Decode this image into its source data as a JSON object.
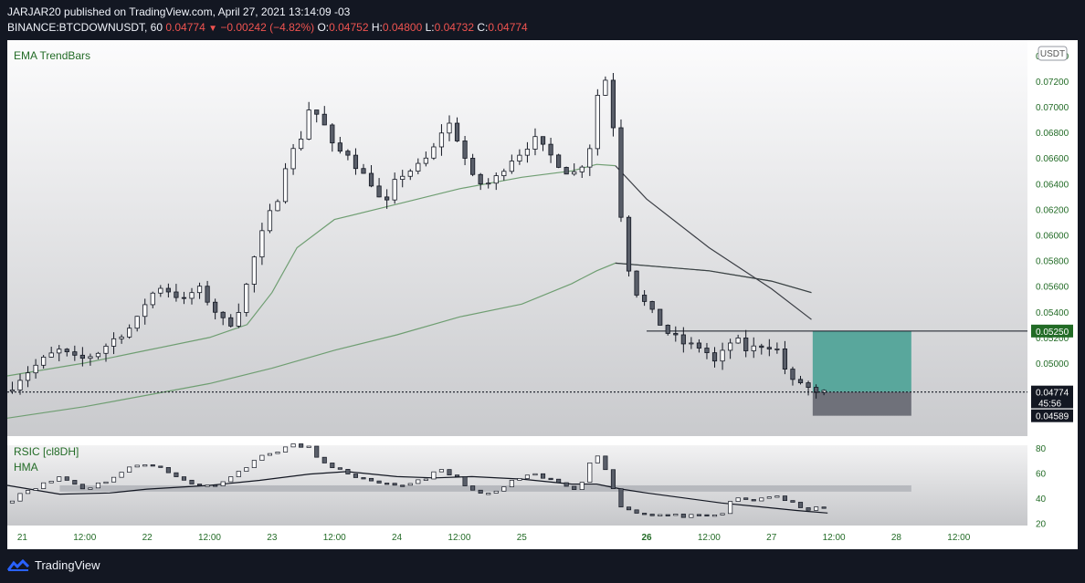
{
  "header": {
    "publisher_line": "JARJAR20 published on TradingView.com, April 27, 2021 13:14:09 -03",
    "symbol": "BINANCE:BTCDOWNUSDT, 60",
    "last": "0.04774",
    "change_arrow": "▼",
    "change": "−0.00242 (−4.82%)",
    "o_label": "O:",
    "o_value": "0.04752",
    "h_label": "H:",
    "h_value": "0.04800",
    "l_label": "L:",
    "l_value": "0.04732",
    "c_label": "C:",
    "c_value": "0.04774"
  },
  "footer": {
    "brand": "TradingView",
    "logo_icon": "tradingview-logo-icon"
  },
  "colors": {
    "background": "#131722",
    "bull": "#ffffff",
    "bear": "#595e69",
    "ema_green": "#6f9e72",
    "ema_dark": "#3b3e45",
    "position_fill": "#59a79c",
    "stop_fill": "#6f717a",
    "label_green": "#226b26"
  },
  "chart_data": [
    {
      "type": "candlestick",
      "indicator_label": "EMA TrendBars",
      "currency_badge": "USDT",
      "y_ticks": [
        "0.05000",
        "0.05200",
        "0.05400",
        "0.05600",
        "0.05800",
        "0.06000",
        "0.06200",
        "0.06400",
        "0.06600",
        "0.06800",
        "0.07000",
        "0.07200",
        "0.07400"
      ],
      "ylim": [
        0.0443,
        0.0752
      ],
      "x_ticks": [
        {
          "label": "21",
          "x": 21.0
        },
        {
          "label": "12:00",
          "x": 21.5
        },
        {
          "label": "22",
          "x": 22.0
        },
        {
          "label": "12:00",
          "x": 22.5
        },
        {
          "label": "23",
          "x": 23.0
        },
        {
          "label": "12:00",
          "x": 23.5
        },
        {
          "label": "24",
          "x": 24.0
        },
        {
          "label": "12:00",
          "x": 24.5
        },
        {
          "label": "25",
          "x": 25.0
        },
        {
          "label": "26",
          "x": 26.0
        },
        {
          "label": "12:00",
          "x": 26.5
        },
        {
          "label": "27",
          "x": 27.0
        },
        {
          "label": "12:00",
          "x": 27.5
        },
        {
          "label": "28",
          "x": 28.0
        },
        {
          "label": "12:00",
          "x": 28.5
        }
      ],
      "xlim": [
        20.88,
        29.05
      ],
      "price_path": [
        [
          20.88,
          0.0478
        ],
        [
          21.0,
          0.049
        ],
        [
          21.2,
          0.0505
        ],
        [
          21.3,
          0.051
        ],
        [
          21.45,
          0.0502
        ],
        [
          21.6,
          0.0508
        ],
        [
          21.75,
          0.052
        ],
        [
          21.9,
          0.053
        ],
        [
          22.0,
          0.055
        ],
        [
          22.1,
          0.056
        ],
        [
          22.2,
          0.0555
        ],
        [
          22.3,
          0.0548
        ],
        [
          22.4,
          0.056
        ],
        [
          22.55,
          0.054
        ],
        [
          22.65,
          0.0528
        ],
        [
          22.75,
          0.0545
        ],
        [
          22.85,
          0.058
        ],
        [
          22.95,
          0.061
        ],
        [
          23.05,
          0.063
        ],
        [
          23.12,
          0.066
        ],
        [
          23.22,
          0.0672
        ],
        [
          23.3,
          0.07
        ],
        [
          23.4,
          0.069
        ],
        [
          23.5,
          0.0665
        ],
        [
          23.6,
          0.0665
        ],
        [
          23.7,
          0.065
        ],
        [
          23.8,
          0.064
        ],
        [
          23.9,
          0.062
        ],
        [
          24.0,
          0.0645
        ],
        [
          24.1,
          0.065
        ],
        [
          24.2,
          0.0655
        ],
        [
          24.3,
          0.0668
        ],
        [
          24.4,
          0.069
        ],
        [
          24.5,
          0.0672
        ],
        [
          24.6,
          0.0645
        ],
        [
          24.7,
          0.0638
        ],
        [
          24.8,
          0.0645
        ],
        [
          24.9,
          0.0658
        ],
        [
          25.0,
          0.0665
        ],
        [
          25.1,
          0.0675
        ],
        [
          25.2,
          0.0665
        ],
        [
          25.35,
          0.065
        ],
        [
          25.45,
          0.0648
        ],
        [
          25.55,
          0.067
        ],
        [
          25.62,
          0.0718
        ],
        [
          25.68,
          0.0722
        ],
        [
          25.74,
          0.068
        ],
        [
          25.8,
          0.061
        ],
        [
          25.88,
          0.056
        ],
        [
          26.0,
          0.0545
        ],
        [
          26.15,
          0.0525
        ],
        [
          26.3,
          0.0515
        ],
        [
          26.45,
          0.0512
        ],
        [
          26.55,
          0.05
        ],
        [
          26.7,
          0.052
        ],
        [
          26.8,
          0.051
        ],
        [
          26.95,
          0.0515
        ],
        [
          27.05,
          0.051
        ],
        [
          27.15,
          0.0485
        ],
        [
          27.25,
          0.0485
        ],
        [
          27.35,
          0.0475
        ],
        [
          27.45,
          0.0477
        ]
      ],
      "ema_fast": [
        [
          20.88,
          0.049
        ],
        [
          21.5,
          0.05
        ],
        [
          22.0,
          0.051
        ],
        [
          22.5,
          0.052
        ],
        [
          22.8,
          0.053
        ],
        [
          23.0,
          0.0555
        ],
        [
          23.2,
          0.059
        ],
        [
          23.5,
          0.0612
        ],
        [
          24.0,
          0.0624
        ],
        [
          24.5,
          0.0636
        ],
        [
          25.0,
          0.0645
        ],
        [
          25.4,
          0.065
        ],
        [
          25.6,
          0.0655
        ],
        [
          25.75,
          0.0654
        ],
        [
          26.0,
          0.0628
        ],
        [
          26.5,
          0.059
        ],
        [
          27.0,
          0.0558
        ],
        [
          27.32,
          0.0534
        ]
      ],
      "ema_slow": [
        [
          20.88,
          0.0457
        ],
        [
          21.5,
          0.0466
        ],
        [
          22.0,
          0.0475
        ],
        [
          22.5,
          0.0484
        ],
        [
          23.0,
          0.0496
        ],
        [
          23.5,
          0.051
        ],
        [
          24.0,
          0.0522
        ],
        [
          24.5,
          0.0536
        ],
        [
          25.0,
          0.0546
        ],
        [
          25.4,
          0.0562
        ],
        [
          25.6,
          0.0572
        ],
        [
          25.75,
          0.0578
        ],
        [
          26.0,
          0.0576
        ],
        [
          26.5,
          0.0572
        ],
        [
          27.0,
          0.0564
        ],
        [
          27.32,
          0.0555
        ]
      ],
      "horizontal_line": {
        "value": 0.0525,
        "x_start": 26.0
      },
      "position": {
        "x_start": 27.33,
        "x_end": 28.12,
        "target": 0.0525,
        "entry": 0.04774,
        "stop": 0.04589
      },
      "price_labels": [
        {
          "text": "0.05250",
          "value": 0.0525,
          "kind": "line"
        },
        {
          "text": "0.04774",
          "value": 0.04774,
          "kind": "last"
        },
        {
          "text": "45:56",
          "value": 0.0469,
          "kind": "countdown"
        },
        {
          "text": "0.04589",
          "value": 0.04589,
          "kind": "stop"
        }
      ]
    },
    {
      "type": "line",
      "series": [
        {
          "name": "RSIC [cl8DH]"
        },
        {
          "name": "HMA"
        }
      ],
      "y_ticks": [
        "20",
        "40",
        "60",
        "80"
      ],
      "ylim": [
        18,
        82
      ],
      "band": [
        45,
        50
      ],
      "rsi_path": [
        [
          20.88,
          36
        ],
        [
          21.0,
          45
        ],
        [
          21.2,
          52
        ],
        [
          21.3,
          57
        ],
        [
          21.5,
          47
        ],
        [
          21.7,
          55
        ],
        [
          21.9,
          66
        ],
        [
          22.0,
          68
        ],
        [
          22.1,
          64
        ],
        [
          22.2,
          58
        ],
        [
          22.35,
          52
        ],
        [
          22.5,
          49
        ],
        [
          22.7,
          58
        ],
        [
          22.85,
          70
        ],
        [
          23.0,
          76
        ],
        [
          23.15,
          82
        ],
        [
          23.3,
          80
        ],
        [
          23.45,
          64
        ],
        [
          23.6,
          60
        ],
        [
          23.8,
          52
        ],
        [
          24.0,
          49
        ],
        [
          24.2,
          55
        ],
        [
          24.35,
          62
        ],
        [
          24.5,
          55
        ],
        [
          24.65,
          42
        ],
        [
          24.8,
          45
        ],
        [
          24.95,
          55
        ],
        [
          25.1,
          58
        ],
        [
          25.3,
          52
        ],
        [
          25.45,
          47
        ],
        [
          25.55,
          68
        ],
        [
          25.62,
          76
        ],
        [
          25.72,
          50
        ],
        [
          25.8,
          32
        ],
        [
          26.0,
          27
        ],
        [
          26.2,
          26
        ],
        [
          26.45,
          25
        ],
        [
          26.6,
          27
        ],
        [
          26.7,
          40
        ],
        [
          26.85,
          38
        ],
        [
          27.0,
          42
        ],
        [
          27.15,
          36
        ],
        [
          27.3,
          31
        ],
        [
          27.45,
          32
        ]
      ],
      "hma_path": [
        [
          20.88,
          50
        ],
        [
          21.3,
          43
        ],
        [
          21.7,
          44
        ],
        [
          22.0,
          47
        ],
        [
          22.5,
          50
        ],
        [
          22.9,
          54
        ],
        [
          23.3,
          59
        ],
        [
          23.6,
          61
        ],
        [
          24.0,
          57
        ],
        [
          24.3,
          56
        ],
        [
          24.6,
          57
        ],
        [
          25.0,
          55
        ],
        [
          25.4,
          51
        ],
        [
          25.6,
          51
        ],
        [
          25.8,
          47
        ],
        [
          26.0,
          44
        ],
        [
          26.3,
          40
        ],
        [
          26.6,
          36
        ],
        [
          26.9,
          33
        ],
        [
          27.2,
          30
        ],
        [
          27.45,
          28
        ]
      ]
    }
  ]
}
